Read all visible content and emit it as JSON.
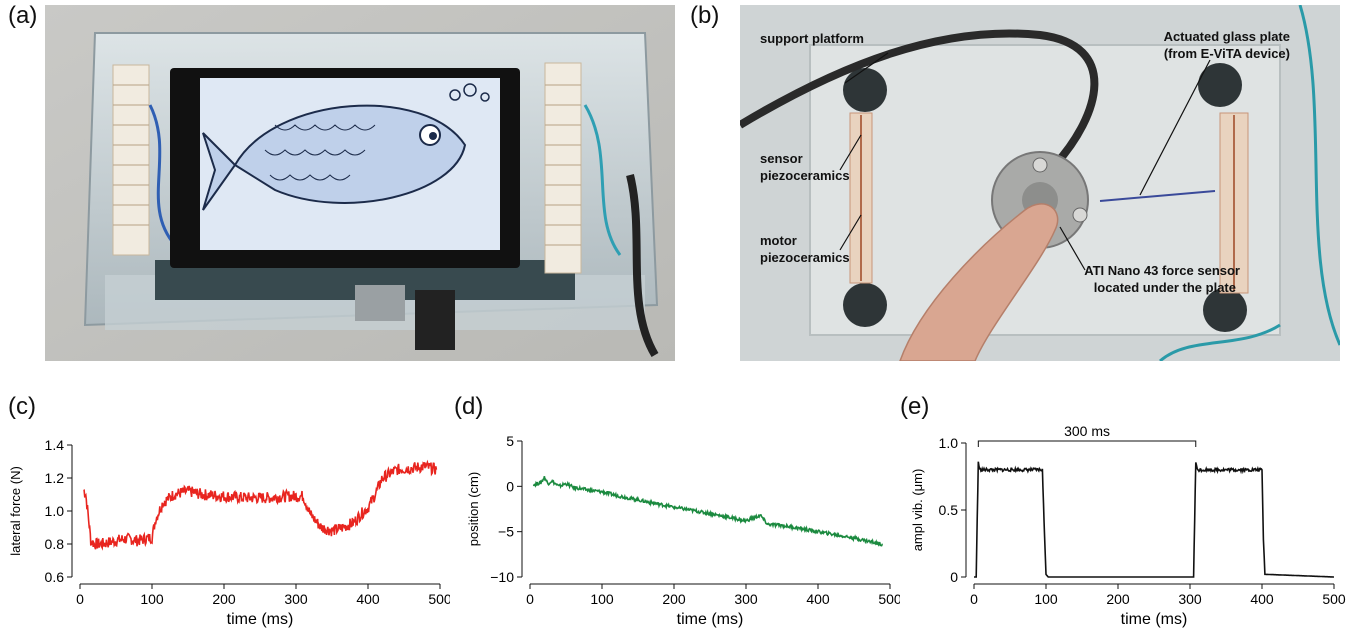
{
  "panels": {
    "a": "(a)",
    "b": "(b)",
    "c": "(c)",
    "d": "(d)",
    "e": "(e)"
  },
  "photo_b_labels": {
    "support_platform": "support platform",
    "sensor_1": "sensor",
    "sensor_2": "piezoceramics",
    "motor_1": "motor",
    "motor_2": "piezoceramics",
    "glass_1": "Actuated glass plate",
    "glass_2": "(from E-ViTA device)",
    "ati_1": "ATI Nano 43 force sensor",
    "ati_2": "located under the plate"
  },
  "colors": {
    "chart_c": "#e8251f",
    "chart_d": "#1b8a3f",
    "chart_e": "#111111"
  },
  "chart_data": [
    {
      "type": "line",
      "panel": "c",
      "xlabel": "time (ms)",
      "ylabel": "lateral force (N)",
      "xlim": [
        0,
        500
      ],
      "ylim": [
        0.6,
        1.4
      ],
      "xticks": [
        "0",
        "100",
        "200",
        "300",
        "400",
        "500"
      ],
      "yticks": [
        "0.6",
        "0.8",
        "1.0",
        "1.2",
        "1.4"
      ],
      "series": [
        {
          "x": [
            5,
            8,
            12,
            15,
            20,
            30,
            40,
            50,
            60,
            70,
            80,
            90,
            100,
            105,
            115,
            130,
            150,
            170,
            200,
            230,
            260,
            290,
            310,
            320,
            335,
            350,
            365,
            380,
            390,
            400,
            410,
            420,
            440,
            460,
            480,
            495
          ],
          "y": [
            1.13,
            1.1,
            0.95,
            0.82,
            0.8,
            0.8,
            0.81,
            0.82,
            0.83,
            0.83,
            0.82,
            0.83,
            0.84,
            0.95,
            1.05,
            1.1,
            1.12,
            1.1,
            1.09,
            1.08,
            1.08,
            1.09,
            1.09,
            0.98,
            0.9,
            0.88,
            0.9,
            0.93,
            0.98,
            1.02,
            1.1,
            1.2,
            1.25,
            1.26,
            1.27,
            1.25
          ]
        }
      ]
    },
    {
      "type": "line",
      "panel": "d",
      "xlabel": "time (ms)",
      "ylabel": "position (cm)",
      "xlim": [
        0,
        500
      ],
      "ylim": [
        -10,
        5
      ],
      "xticks": [
        "0",
        "100",
        "200",
        "300",
        "400",
        "500"
      ],
      "yticks": [
        "−10",
        "−5",
        "0",
        "5"
      ],
      "series": [
        {
          "x": [
            5,
            15,
            20,
            25,
            30,
            40,
            50,
            60,
            80,
            100,
            120,
            150,
            200,
            250,
            300,
            320,
            330,
            350,
            400,
            450,
            490
          ],
          "y": [
            0.2,
            0.4,
            1.0,
            0.3,
            0.6,
            0.0,
            0.3,
            -0.1,
            -0.4,
            -0.6,
            -1.0,
            -1.5,
            -2.3,
            -3.0,
            -3.8,
            -3.2,
            -4.2,
            -4.3,
            -5.0,
            -5.7,
            -6.4
          ]
        }
      ]
    },
    {
      "type": "line",
      "panel": "e",
      "xlabel": "time (ms)",
      "ylabel": "ampl vib. (μm)",
      "xlim": [
        0,
        500
      ],
      "ylim": [
        0,
        1.0
      ],
      "xticks": [
        "0",
        "100",
        "200",
        "300",
        "400",
        "500"
      ],
      "yticks": [
        "0",
        "0.5",
        "1.0"
      ],
      "annotation": "300 ms",
      "series": [
        {
          "x": [
            0,
            3,
            6,
            8,
            95,
            98,
            100,
            103,
            305,
            308,
            310,
            400,
            402,
            404,
            500
          ],
          "y": [
            0,
            0,
            0.86,
            0.8,
            0.8,
            0.3,
            0.02,
            0,
            0,
            0.86,
            0.8,
            0.8,
            0.28,
            0.02,
            0
          ]
        }
      ]
    }
  ]
}
